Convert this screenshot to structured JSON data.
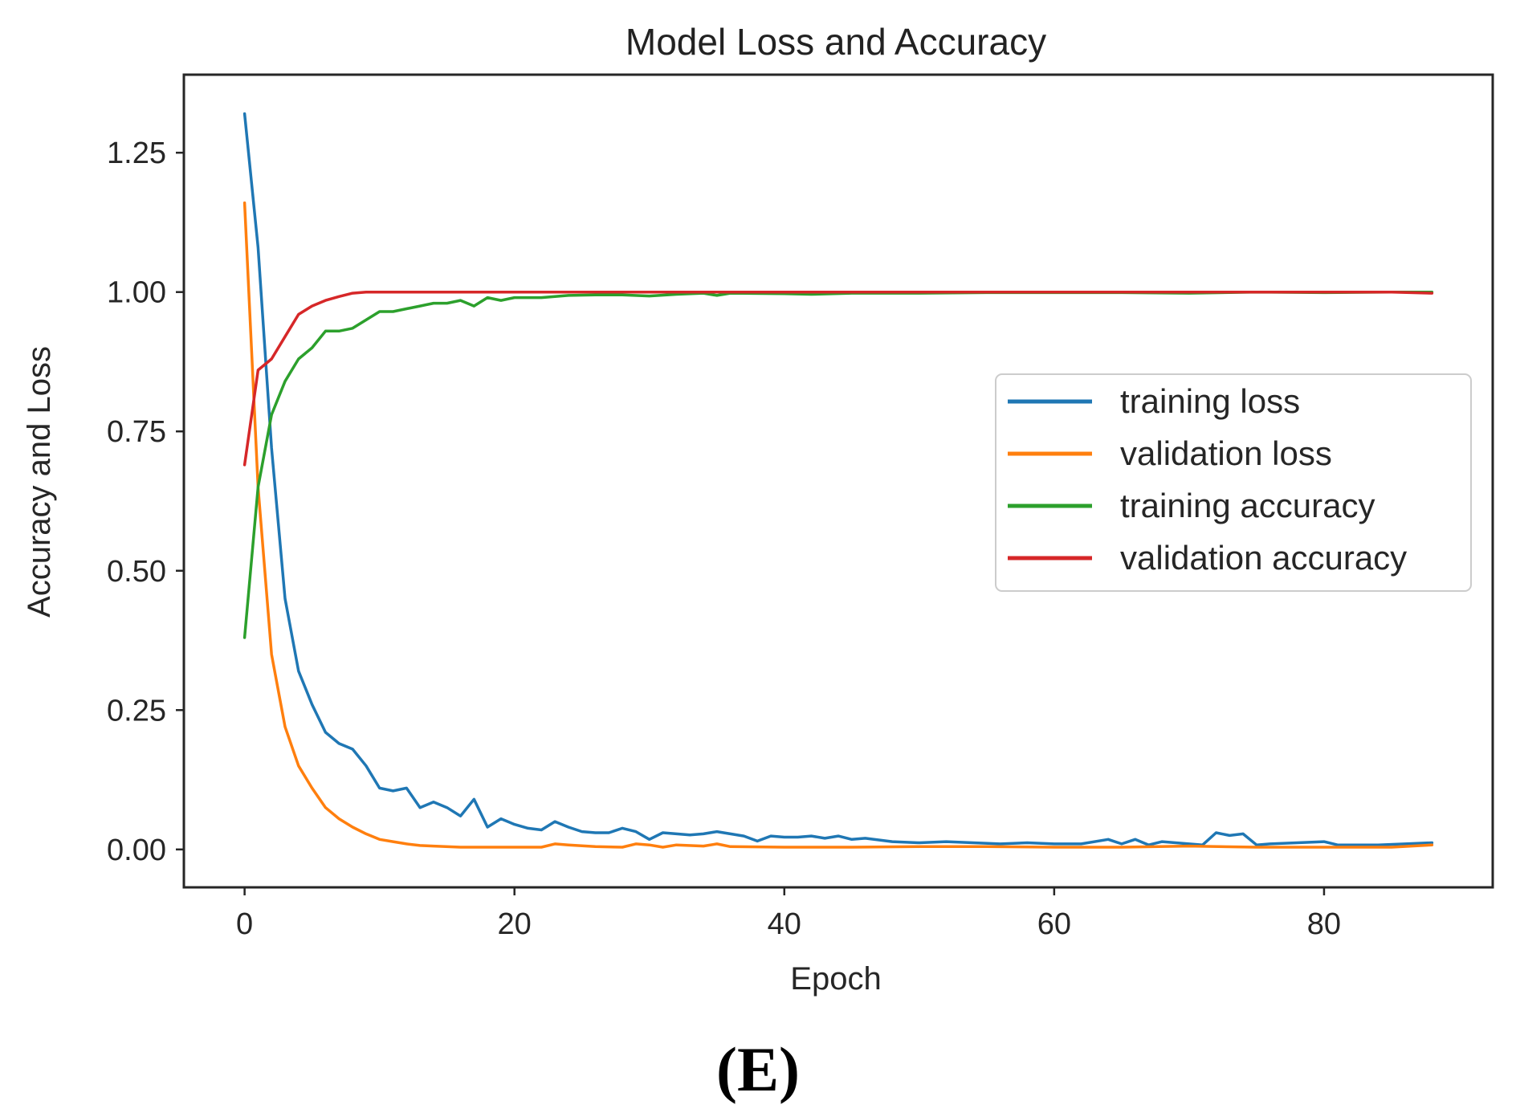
{
  "chart_data": {
    "type": "line",
    "title": "Model Loss and Accuracy",
    "xlabel": "Epoch",
    "ylabel": "Accuracy and Loss",
    "xlim": [
      -4.5,
      92.5
    ],
    "ylim": [
      -0.068,
      1.39
    ],
    "xticks": [
      0,
      20,
      40,
      60,
      80
    ],
    "yticks": [
      0.0,
      0.25,
      0.5,
      0.75,
      1.0,
      1.25
    ],
    "xtick_labels": [
      "0",
      "20",
      "40",
      "60",
      "80"
    ],
    "ytick_labels": [
      "0.00",
      "0.25",
      "0.50",
      "0.75",
      "1.00",
      "1.25"
    ],
    "grid": false,
    "legend_position": "center-right",
    "caption": "(E)",
    "series": [
      {
        "name": "training loss",
        "color": "#1f77b4",
        "keypoints": [
          [
            0,
            1.32
          ],
          [
            1,
            1.08
          ],
          [
            2,
            0.72
          ],
          [
            3,
            0.45
          ],
          [
            4,
            0.32
          ],
          [
            5,
            0.26
          ],
          [
            6,
            0.21
          ],
          [
            7,
            0.19
          ],
          [
            8,
            0.18
          ],
          [
            9,
            0.15
          ],
          [
            10,
            0.11
          ],
          [
            11,
            0.105
          ],
          [
            12,
            0.11
          ],
          [
            13,
            0.075
          ],
          [
            14,
            0.085
          ],
          [
            15,
            0.075
          ],
          [
            16,
            0.06
          ],
          [
            17,
            0.09
          ],
          [
            18,
            0.04
          ],
          [
            19,
            0.055
          ],
          [
            20,
            0.045
          ],
          [
            21,
            0.038
          ],
          [
            22,
            0.035
          ],
          [
            23,
            0.05
          ],
          [
            24,
            0.04
          ],
          [
            25,
            0.032
          ],
          [
            26,
            0.03
          ],
          [
            27,
            0.03
          ],
          [
            28,
            0.038
          ],
          [
            29,
            0.032
          ],
          [
            30,
            0.018
          ],
          [
            31,
            0.03
          ],
          [
            32,
            0.028
          ],
          [
            33,
            0.026
          ],
          [
            34,
            0.028
          ],
          [
            35,
            0.032
          ],
          [
            36,
            0.028
          ],
          [
            37,
            0.024
          ],
          [
            38,
            0.015
          ],
          [
            39,
            0.024
          ],
          [
            40,
            0.022
          ],
          [
            41,
            0.022
          ],
          [
            42,
            0.024
          ],
          [
            43,
            0.02
          ],
          [
            44,
            0.024
          ],
          [
            45,
            0.018
          ],
          [
            46,
            0.02
          ],
          [
            48,
            0.014
          ],
          [
            50,
            0.012
          ],
          [
            52,
            0.014
          ],
          [
            54,
            0.012
          ],
          [
            56,
            0.01
          ],
          [
            58,
            0.012
          ],
          [
            60,
            0.01
          ],
          [
            62,
            0.01
          ],
          [
            64,
            0.018
          ],
          [
            65,
            0.01
          ],
          [
            66,
            0.018
          ],
          [
            67,
            0.008
          ],
          [
            68,
            0.014
          ],
          [
            70,
            0.01
          ],
          [
            71,
            0.008
          ],
          [
            72,
            0.03
          ],
          [
            73,
            0.025
          ],
          [
            74,
            0.028
          ],
          [
            75,
            0.008
          ],
          [
            76,
            0.01
          ],
          [
            78,
            0.012
          ],
          [
            80,
            0.014
          ],
          [
            81,
            0.008
          ],
          [
            84,
            0.008
          ],
          [
            86,
            0.01
          ],
          [
            88,
            0.012
          ]
        ]
      },
      {
        "name": "validation loss",
        "color": "#ff7f0e",
        "keypoints": [
          [
            0,
            1.16
          ],
          [
            1,
            0.65
          ],
          [
            2,
            0.35
          ],
          [
            3,
            0.22
          ],
          [
            4,
            0.15
          ],
          [
            5,
            0.11
          ],
          [
            6,
            0.075
          ],
          [
            7,
            0.055
          ],
          [
            8,
            0.04
          ],
          [
            9,
            0.028
          ],
          [
            10,
            0.018
          ],
          [
            11,
            0.014
          ],
          [
            12,
            0.01
          ],
          [
            13,
            0.007
          ],
          [
            14,
            0.006
          ],
          [
            16,
            0.004
          ],
          [
            18,
            0.004
          ],
          [
            20,
            0.004
          ],
          [
            22,
            0.004
          ],
          [
            23,
            0.01
          ],
          [
            24,
            0.008
          ],
          [
            26,
            0.005
          ],
          [
            28,
            0.004
          ],
          [
            29,
            0.01
          ],
          [
            30,
            0.008
          ],
          [
            31,
            0.004
          ],
          [
            32,
            0.008
          ],
          [
            34,
            0.006
          ],
          [
            35,
            0.01
          ],
          [
            36,
            0.005
          ],
          [
            40,
            0.004
          ],
          [
            45,
            0.004
          ],
          [
            50,
            0.005
          ],
          [
            55,
            0.005
          ],
          [
            60,
            0.004
          ],
          [
            65,
            0.004
          ],
          [
            70,
            0.006
          ],
          [
            75,
            0.004
          ],
          [
            80,
            0.004
          ],
          [
            85,
            0.004
          ],
          [
            88,
            0.008
          ]
        ]
      },
      {
        "name": "training accuracy",
        "color": "#2ca02c",
        "keypoints": [
          [
            0,
            0.38
          ],
          [
            1,
            0.65
          ],
          [
            2,
            0.78
          ],
          [
            3,
            0.84
          ],
          [
            4,
            0.88
          ],
          [
            5,
            0.9
          ],
          [
            6,
            0.93
          ],
          [
            7,
            0.93
          ],
          [
            8,
            0.935
          ],
          [
            9,
            0.95
          ],
          [
            10,
            0.965
          ],
          [
            11,
            0.965
          ],
          [
            12,
            0.97
          ],
          [
            13,
            0.975
          ],
          [
            14,
            0.98
          ],
          [
            15,
            0.98
          ],
          [
            16,
            0.985
          ],
          [
            17,
            0.975
          ],
          [
            18,
            0.99
          ],
          [
            19,
            0.985
          ],
          [
            20,
            0.99
          ],
          [
            22,
            0.99
          ],
          [
            24,
            0.994
          ],
          [
            26,
            0.995
          ],
          [
            28,
            0.995
          ],
          [
            30,
            0.993
          ],
          [
            32,
            0.996
          ],
          [
            34,
            0.998
          ],
          [
            35,
            0.994
          ],
          [
            36,
            0.998
          ],
          [
            40,
            0.997
          ],
          [
            42,
            0.996
          ],
          [
            45,
            0.998
          ],
          [
            50,
            0.998
          ],
          [
            55,
            0.999
          ],
          [
            60,
            0.999
          ],
          [
            65,
            0.999
          ],
          [
            70,
            0.998
          ],
          [
            75,
            1.0
          ],
          [
            80,
            0.999
          ],
          [
            85,
            1.0
          ],
          [
            88,
            1.0
          ]
        ]
      },
      {
        "name": "validation accuracy",
        "color": "#d62728",
        "keypoints": [
          [
            0,
            0.69
          ],
          [
            1,
            0.86
          ],
          [
            2,
            0.88
          ],
          [
            3,
            0.92
          ],
          [
            4,
            0.96
          ],
          [
            5,
            0.975
          ],
          [
            6,
            0.985
          ],
          [
            7,
            0.992
          ],
          [
            8,
            0.998
          ],
          [
            9,
            1.0
          ],
          [
            10,
            1.0
          ],
          [
            15,
            1.0
          ],
          [
            20,
            1.0
          ],
          [
            25,
            1.0
          ],
          [
            30,
            1.0
          ],
          [
            35,
            1.0
          ],
          [
            40,
            1.0
          ],
          [
            45,
            1.0
          ],
          [
            50,
            1.0
          ],
          [
            55,
            1.0
          ],
          [
            60,
            1.0
          ],
          [
            65,
            1.0
          ],
          [
            70,
            1.0
          ],
          [
            75,
            1.0
          ],
          [
            80,
            1.0
          ],
          [
            85,
            1.0
          ],
          [
            88,
            0.998
          ]
        ]
      }
    ]
  }
}
